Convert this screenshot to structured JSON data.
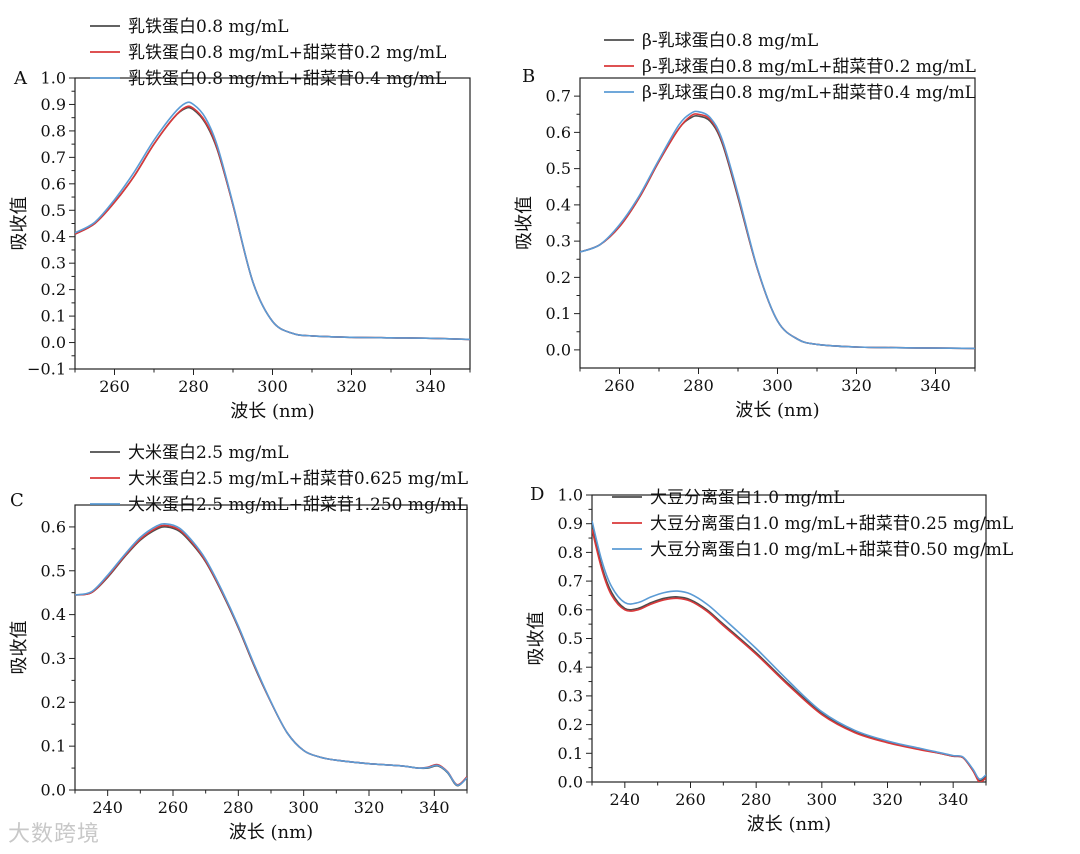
{
  "watermark": "大数跨境",
  "chart_data": [
    {
      "type": "line",
      "panel_label": "A",
      "xlabel": "波长 (nm)",
      "ylabel": "吸收值",
      "xlim": [
        250,
        350
      ],
      "ylim": [
        -0.1,
        1.0
      ],
      "xticks": [
        260,
        280,
        300,
        320,
        340
      ],
      "yticks": [
        -0.1,
        0.0,
        0.1,
        0.2,
        0.3,
        0.4,
        0.5,
        0.6,
        0.7,
        0.8,
        0.9,
        1.0
      ],
      "ytick_labels": [
        "−0.1",
        "0.0",
        "0.1",
        "0.2",
        "0.3",
        "0.4",
        "0.5",
        "0.6",
        "0.7",
        "0.8",
        "0.9",
        "1.0"
      ],
      "legend_position": "top",
      "x": [
        250,
        255,
        260,
        265,
        270,
        275,
        278,
        280,
        283,
        286,
        290,
        295,
        300,
        305,
        310,
        320,
        330,
        340,
        350
      ],
      "series": [
        {
          "name": "乳铁蛋白0.8 mg/mL",
          "color": "#4d4d4d",
          "values": [
            0.41,
            0.45,
            0.53,
            0.63,
            0.75,
            0.85,
            0.885,
            0.88,
            0.83,
            0.73,
            0.52,
            0.23,
            0.08,
            0.035,
            0.025,
            0.02,
            0.018,
            0.016,
            0.012
          ]
        },
        {
          "name": "乳铁蛋白0.8 mg/mL+甜菜苷0.2 mg/mL",
          "color": "#d9383a",
          "values": [
            0.41,
            0.45,
            0.53,
            0.63,
            0.75,
            0.85,
            0.89,
            0.885,
            0.835,
            0.735,
            0.52,
            0.23,
            0.08,
            0.035,
            0.025,
            0.02,
            0.018,
            0.016,
            0.012
          ]
        },
        {
          "name": "乳铁蛋白0.8 mg/mL+甜菜苷0.4 mg/mL",
          "color": "#5b9bd5",
          "values": [
            0.415,
            0.455,
            0.54,
            0.645,
            0.765,
            0.865,
            0.905,
            0.9,
            0.85,
            0.745,
            0.525,
            0.23,
            0.08,
            0.035,
            0.025,
            0.02,
            0.018,
            0.016,
            0.012
          ]
        }
      ]
    },
    {
      "type": "line",
      "panel_label": "B",
      "xlabel": "波长 (nm)",
      "ylabel": "吸收值",
      "xlim": [
        250,
        350
      ],
      "ylim": [
        -0.05,
        0.75
      ],
      "xticks": [
        260,
        280,
        300,
        320,
        340
      ],
      "yticks": [
        0.0,
        0.1,
        0.2,
        0.3,
        0.4,
        0.5,
        0.6,
        0.7
      ],
      "ytick_labels": [
        "0.0",
        "0.1",
        "0.2",
        "0.3",
        "0.4",
        "0.5",
        "0.6",
        "0.7"
      ],
      "legend_position": "top",
      "x": [
        250,
        255,
        260,
        265,
        270,
        275,
        278,
        280,
        283,
        286,
        290,
        295,
        300,
        305,
        310,
        320,
        330,
        340,
        350
      ],
      "series": [
        {
          "name": "β-乳球蛋白0.8 mg/mL",
          "color": "#4d4d4d",
          "values": [
            0.27,
            0.29,
            0.34,
            0.42,
            0.52,
            0.61,
            0.64,
            0.645,
            0.63,
            0.57,
            0.42,
            0.22,
            0.08,
            0.03,
            0.015,
            0.008,
            0.006,
            0.005,
            0.004
          ]
        },
        {
          "name": "β-乳球蛋白0.8 mg/mL+甜菜苷0.2 mg/mL",
          "color": "#d9383a",
          "values": [
            0.27,
            0.29,
            0.34,
            0.42,
            0.52,
            0.61,
            0.645,
            0.65,
            0.635,
            0.575,
            0.425,
            0.22,
            0.08,
            0.03,
            0.015,
            0.008,
            0.006,
            0.005,
            0.004
          ]
        },
        {
          "name": "β-乳球蛋白0.8 mg/mL+甜菜苷0.4 mg/mL",
          "color": "#5b9bd5",
          "values": [
            0.27,
            0.29,
            0.345,
            0.425,
            0.525,
            0.62,
            0.652,
            0.657,
            0.64,
            0.58,
            0.43,
            0.222,
            0.08,
            0.03,
            0.015,
            0.008,
            0.006,
            0.005,
            0.004
          ]
        }
      ]
    },
    {
      "type": "line",
      "panel_label": "C",
      "xlabel": "波长 (nm)",
      "ylabel": "吸收值",
      "xlim": [
        230,
        350
      ],
      "ylim": [
        0.0,
        0.65
      ],
      "xticks": [
        240,
        260,
        280,
        300,
        320,
        340
      ],
      "yticks": [
        0.0,
        0.1,
        0.2,
        0.3,
        0.4,
        0.5,
        0.6
      ],
      "ytick_labels": [
        "0.0",
        "0.1",
        "0.2",
        "0.3",
        "0.4",
        "0.5",
        "0.6"
      ],
      "legend_position": "top",
      "x": [
        230,
        235,
        240,
        245,
        250,
        255,
        258,
        262,
        266,
        270,
        275,
        280,
        285,
        290,
        295,
        300,
        305,
        310,
        320,
        330,
        335,
        338,
        341,
        344,
        347,
        350
      ],
      "series": [
        {
          "name": "大米蛋白2.5 mg/mL",
          "color": "#4d4d4d",
          "values": [
            0.445,
            0.45,
            0.485,
            0.53,
            0.57,
            0.595,
            0.6,
            0.59,
            0.56,
            0.52,
            0.45,
            0.37,
            0.28,
            0.2,
            0.13,
            0.09,
            0.075,
            0.068,
            0.06,
            0.055,
            0.05,
            0.05,
            0.055,
            0.04,
            0.01,
            0.03
          ]
        },
        {
          "name": "大米蛋白2.5 mg/mL+甜菜苷0.625 mg/mL",
          "color": "#d9383a",
          "values": [
            0.445,
            0.45,
            0.487,
            0.532,
            0.572,
            0.598,
            0.603,
            0.593,
            0.563,
            0.522,
            0.452,
            0.372,
            0.282,
            0.2,
            0.13,
            0.09,
            0.075,
            0.068,
            0.06,
            0.055,
            0.05,
            0.052,
            0.058,
            0.042,
            0.012,
            0.03
          ]
        },
        {
          "name": "大米蛋白2.5 mg/mL+甜菜苷1.250 mg/mL",
          "color": "#5b9bd5",
          "values": [
            0.445,
            0.452,
            0.49,
            0.535,
            0.576,
            0.602,
            0.607,
            0.597,
            0.567,
            0.526,
            0.455,
            0.374,
            0.284,
            0.201,
            0.13,
            0.09,
            0.075,
            0.068,
            0.06,
            0.055,
            0.05,
            0.051,
            0.056,
            0.041,
            0.011,
            0.028
          ]
        }
      ]
    },
    {
      "type": "line",
      "panel_label": "D",
      "xlabel": "波长 (nm)",
      "ylabel": "吸收值",
      "xlim": [
        230,
        350
      ],
      "ylim": [
        0.0,
        1.0
      ],
      "xticks": [
        240,
        260,
        280,
        300,
        320,
        340
      ],
      "yticks": [
        0.0,
        0.1,
        0.2,
        0.3,
        0.4,
        0.5,
        0.6,
        0.7,
        0.8,
        0.9,
        1.0
      ],
      "ytick_labels": [
        "0.0",
        "0.1",
        "0.2",
        "0.3",
        "0.4",
        "0.5",
        "0.6",
        "0.7",
        "0.8",
        "0.9",
        "1.0"
      ],
      "legend_position": "top",
      "x": [
        230,
        233,
        236,
        240,
        244,
        248,
        252,
        256,
        260,
        265,
        270,
        280,
        290,
        300,
        310,
        320,
        330,
        336,
        340,
        343,
        346,
        348,
        350
      ],
      "series": [
        {
          "name": "大豆分离蛋白1.0 mg/mL",
          "color": "#4d4d4d",
          "values": [
            0.89,
            0.75,
            0.66,
            0.605,
            0.605,
            0.625,
            0.64,
            0.645,
            0.635,
            0.6,
            0.55,
            0.45,
            0.34,
            0.24,
            0.175,
            0.14,
            0.115,
            0.1,
            0.09,
            0.085,
            0.04,
            0.005,
            0.02
          ]
        },
        {
          "name": "大豆分离蛋白1.0 mg/mL+甜菜苷0.25 mg/mL",
          "color": "#d9383a",
          "values": [
            0.88,
            0.74,
            0.65,
            0.6,
            0.6,
            0.62,
            0.635,
            0.64,
            0.63,
            0.595,
            0.545,
            0.445,
            0.335,
            0.235,
            0.172,
            0.137,
            0.112,
            0.1,
            0.09,
            0.085,
            0.04,
            0.0,
            0.015
          ]
        },
        {
          "name": "大豆分离蛋白1.0 mg/mL+甜菜苷0.50 mg/mL",
          "color": "#5b9bd5",
          "values": [
            0.91,
            0.77,
            0.68,
            0.625,
            0.625,
            0.645,
            0.66,
            0.665,
            0.655,
            0.62,
            0.57,
            0.465,
            0.35,
            0.245,
            0.18,
            0.143,
            0.117,
            0.102,
            0.092,
            0.087,
            0.045,
            0.01,
            0.025
          ]
        }
      ]
    }
  ]
}
